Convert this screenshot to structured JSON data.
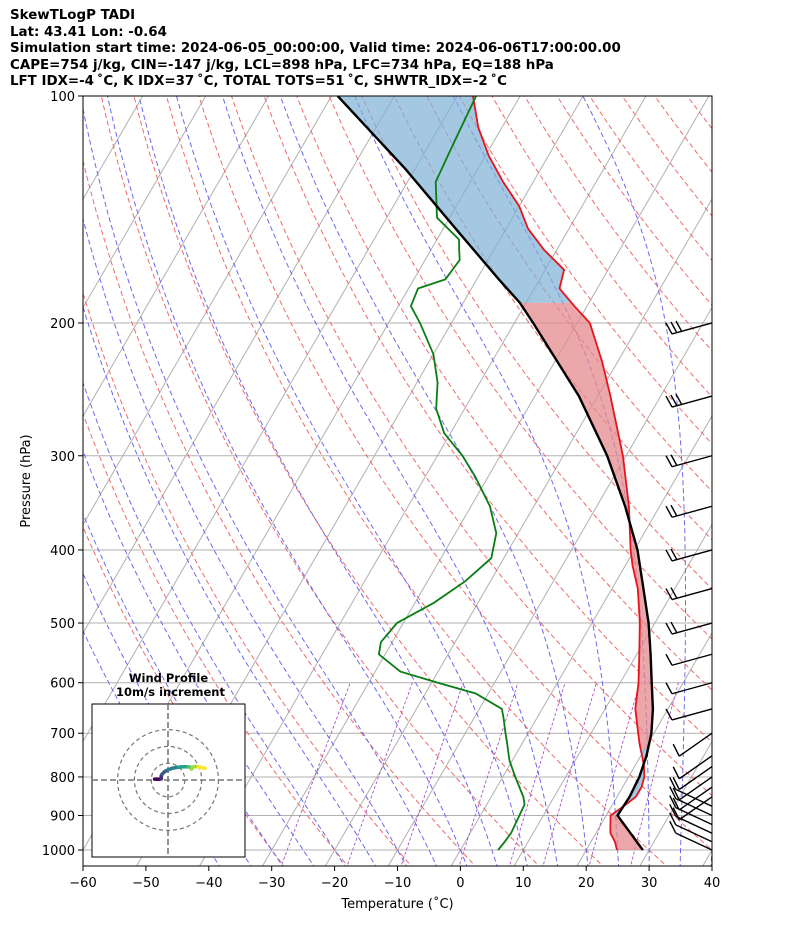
{
  "header": {
    "line1": "SkewTLogP TADI",
    "line2": "Lat: 43.41   Lon: -0.64",
    "line3": "Simulation start time: 2024-06-05_00:00:00, Valid time: 2024-06-06T17:00:00.00",
    "line4": "CAPE=754 j/kg, CIN=-147 j/kg, LCL=898 hPa, LFC=734 hPa, EQ=188 hPa",
    "line5": "LFT IDX=-4 ˚C, K IDX=37 ˚C, TOTAL TOTS=51 ˚C, SHWTR_IDX=-2 ˚C"
  },
  "chart_data": {
    "type": "line",
    "title": "SkewTLogP TADI",
    "xlabel": "Temperature (˚C)",
    "ylabel": "Pressure (hPa)",
    "xlim": [
      -60,
      40
    ],
    "ylim": [
      1050,
      100
    ],
    "x_ticks": [
      -60,
      -50,
      -40,
      -30,
      -20,
      -10,
      0,
      10,
      20,
      30,
      40
    ],
    "y_ticks": [
      100,
      200,
      300,
      400,
      500,
      600,
      700,
      800,
      900,
      1000
    ],
    "skew_deg_per_decade": 69.5,
    "grid": true,
    "series": [
      {
        "name": "Temperature",
        "color": "#e8141c",
        "points": [
          [
            1000,
            24.9
          ],
          [
            975,
            23.8
          ],
          [
            950,
            22.3
          ],
          [
            925,
            21.5
          ],
          [
            900,
            20.7
          ],
          [
            875,
            21.9
          ],
          [
            850,
            23.0
          ],
          [
            825,
            23.0
          ],
          [
            800,
            22.5
          ],
          [
            775,
            21.5
          ],
          [
            750,
            20.2
          ],
          [
            725,
            18.8
          ],
          [
            700,
            17.5
          ],
          [
            650,
            14.8
          ],
          [
            600,
            12.9
          ],
          [
            550,
            10.4
          ],
          [
            500,
            7.6
          ],
          [
            450,
            4.1
          ],
          [
            420,
            1.2
          ],
          [
            400,
            -0.6
          ],
          [
            350,
            -4.9
          ],
          [
            300,
            -10.5
          ],
          [
            250,
            -18.0
          ],
          [
            225,
            -22.5
          ],
          [
            200,
            -28.0
          ],
          [
            190,
            -32.0
          ],
          [
            180,
            -36.0
          ],
          [
            170,
            -37.0
          ],
          [
            160,
            -42.0
          ],
          [
            150,
            -46.5
          ],
          [
            140,
            -50.0
          ],
          [
            130,
            -54.8
          ],
          [
            120,
            -59.5
          ],
          [
            110,
            -63.8
          ],
          [
            100,
            -67.5
          ]
        ]
      },
      {
        "name": "Dewpoint",
        "color": "#0a7d14",
        "points": [
          [
            1000,
            6.0
          ],
          [
            975,
            6.3
          ],
          [
            950,
            6.5
          ],
          [
            900,
            6.2
          ],
          [
            870,
            6.0
          ],
          [
            850,
            5.1
          ],
          [
            800,
            2.0
          ],
          [
            760,
            -0.5
          ],
          [
            720,
            -2.5
          ],
          [
            700,
            -3.6
          ],
          [
            670,
            -5.2
          ],
          [
            650,
            -6.4
          ],
          [
            620,
            -12.0
          ],
          [
            600,
            -19.0
          ],
          [
            580,
            -26.0
          ],
          [
            550,
            -31.0
          ],
          [
            530,
            -31.8
          ],
          [
            500,
            -31.0
          ],
          [
            470,
            -27.0
          ],
          [
            440,
            -24.0
          ],
          [
            410,
            -22.0
          ],
          [
            380,
            -23.5
          ],
          [
            350,
            -27.0
          ],
          [
            320,
            -32.0
          ],
          [
            300,
            -36.0
          ],
          [
            280,
            -41.0
          ],
          [
            260,
            -44.5
          ],
          [
            250,
            -45.6
          ],
          [
            240,
            -46.7
          ],
          [
            220,
            -50.0
          ],
          [
            200,
            -55.0
          ],
          [
            190,
            -58.0
          ],
          [
            180,
            -58.5
          ],
          [
            175,
            -55.0
          ],
          [
            165,
            -54.5
          ],
          [
            160,
            -55.5
          ],
          [
            155,
            -56.5
          ],
          [
            145,
            -62.0
          ],
          [
            130,
            -65.5
          ],
          [
            120,
            -66.0
          ],
          [
            110,
            -66.5
          ],
          [
            100,
            -67.0
          ]
        ]
      },
      {
        "name": "Parcel",
        "color": "#000000",
        "points": [
          [
            1000,
            29.0
          ],
          [
            950,
            25.5
          ],
          [
            900,
            21.8
          ],
          [
            850,
            22.0
          ],
          [
            800,
            21.7
          ],
          [
            750,
            20.9
          ],
          [
            700,
            19.6
          ],
          [
            650,
            17.6
          ],
          [
            600,
            15.0
          ],
          [
            550,
            12.2
          ],
          [
            500,
            9.0
          ],
          [
            450,
            5.0
          ],
          [
            400,
            0.5
          ],
          [
            350,
            -5.5
          ],
          [
            300,
            -13.0
          ],
          [
            250,
            -23.0
          ],
          [
            200,
            -37.0
          ],
          [
            188,
            -41.0
          ],
          [
            175,
            -46.5
          ],
          [
            150,
            -58.0
          ],
          [
            125,
            -71.5
          ],
          [
            100,
            -89.0
          ]
        ]
      }
    ],
    "shaded_regions": [
      {
        "name": "CAPE",
        "color": "#e58a8e"
      },
      {
        "name": "CIN / Stable",
        "color": "#7eb0d5"
      }
    ],
    "wind_barbs": {
      "pressures": [
        1000,
        975,
        950,
        925,
        900,
        875,
        850,
        825,
        800,
        775,
        750,
        700,
        650,
        600,
        550,
        500,
        450,
        400,
        350,
        300,
        250,
        200
      ],
      "note": "Wind barbs plotted on right side"
    },
    "hodograph": {
      "title": "Wind Profile",
      "subtitle": "10m/s increment",
      "rings": [
        10,
        20,
        30
      ],
      "points": [
        [
          -8,
          0.5
        ],
        [
          -7,
          0.5
        ],
        [
          -5,
          0.5
        ],
        [
          -4,
          0.7
        ],
        [
          -4,
          1.5
        ],
        [
          -4,
          2.5
        ],
        [
          -3.5,
          3.5
        ],
        [
          -2,
          5
        ],
        [
          0,
          6
        ],
        [
          2,
          6.8
        ],
        [
          4,
          7.3
        ],
        [
          6,
          7.6
        ],
        [
          8,
          7.8
        ],
        [
          10,
          7.9
        ],
        [
          12,
          7.8
        ],
        [
          13.5,
          7.6
        ],
        [
          14,
          6.5
        ],
        [
          14.5,
          7.5
        ],
        [
          16,
          8.0
        ],
        [
          18,
          7.8
        ],
        [
          20,
          7.4
        ],
        [
          22,
          7.0
        ]
      ]
    }
  }
}
